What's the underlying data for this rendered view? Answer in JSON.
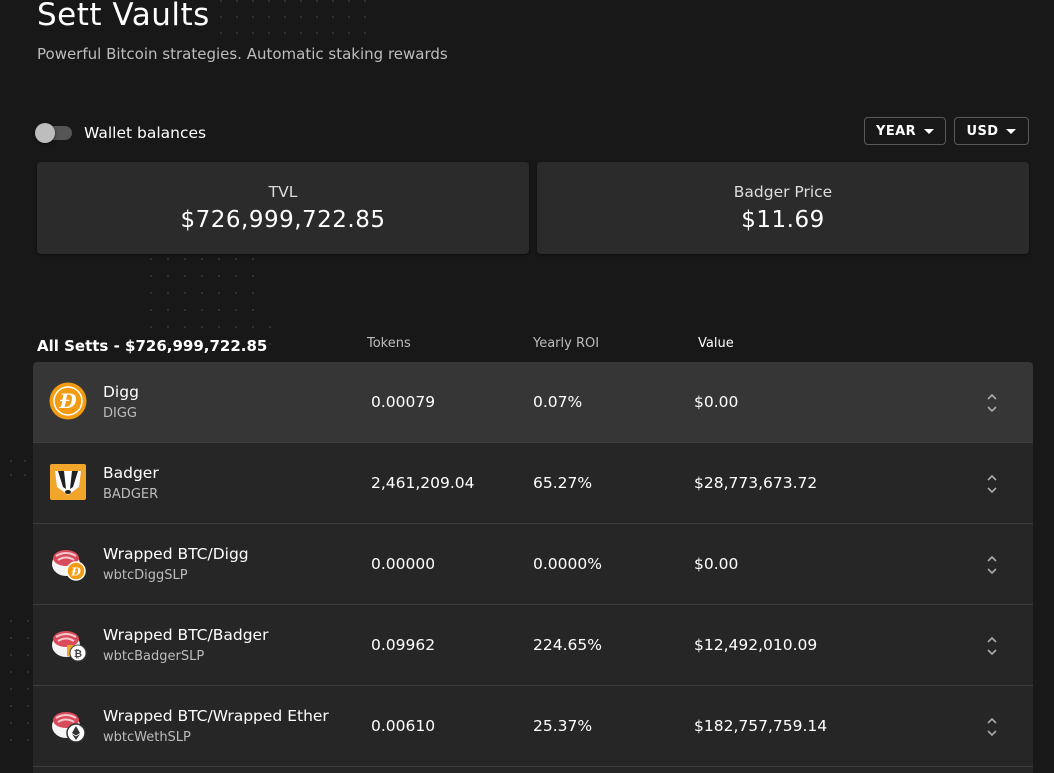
{
  "header": {
    "title": "Sett Vaults",
    "subtitle": "Powerful Bitcoin strategies. Automatic staking rewards"
  },
  "wallet_toggle": {
    "label": "Wallet balances",
    "on": false
  },
  "selectors": {
    "period": "YEAR",
    "currency": "USD"
  },
  "stats": {
    "tvl": {
      "label": "TVL",
      "value": "$726,999,722.85"
    },
    "badger_price": {
      "label": "Badger Price",
      "value": "$11.69"
    }
  },
  "table": {
    "title": "All Setts - $726,999,722.85",
    "columns": {
      "tokens": "Tokens",
      "roi": "Yearly ROI",
      "value": "Value"
    },
    "rows": [
      {
        "name": "Digg",
        "symbol": "DIGG",
        "tokens": "0.00079",
        "roi": "0.07%",
        "value": "$0.00",
        "icon": "digg-icon"
      },
      {
        "name": "Badger",
        "symbol": "BADGER",
        "tokens": "2,461,209.04",
        "roi": "65.27%",
        "value": "$28,773,673.72",
        "icon": "badger-icon"
      },
      {
        "name": "Wrapped BTC/Digg",
        "symbol": "wbtcDiggSLP",
        "tokens": "0.00000",
        "roi": "0.0000%",
        "value": "$0.00",
        "icon": "sushi-digg-icon"
      },
      {
        "name": "Wrapped BTC/Badger",
        "symbol": "wbtcBadgerSLP",
        "tokens": "0.09962",
        "roi": "224.65%",
        "value": "$12,492,010.09",
        "icon": "sushi-badger-icon"
      },
      {
        "name": "Wrapped BTC/Wrapped Ether",
        "symbol": "wbtcWethSLP",
        "tokens": "0.00610",
        "roi": "25.37%",
        "value": "$182,757,759.14",
        "icon": "sushi-weth-icon"
      }
    ]
  },
  "colors": {
    "background": "#181818",
    "card": "#2b2b2b",
    "row": "#262626",
    "row_highlight": "#363636",
    "digg_orange": "#f39c12"
  }
}
